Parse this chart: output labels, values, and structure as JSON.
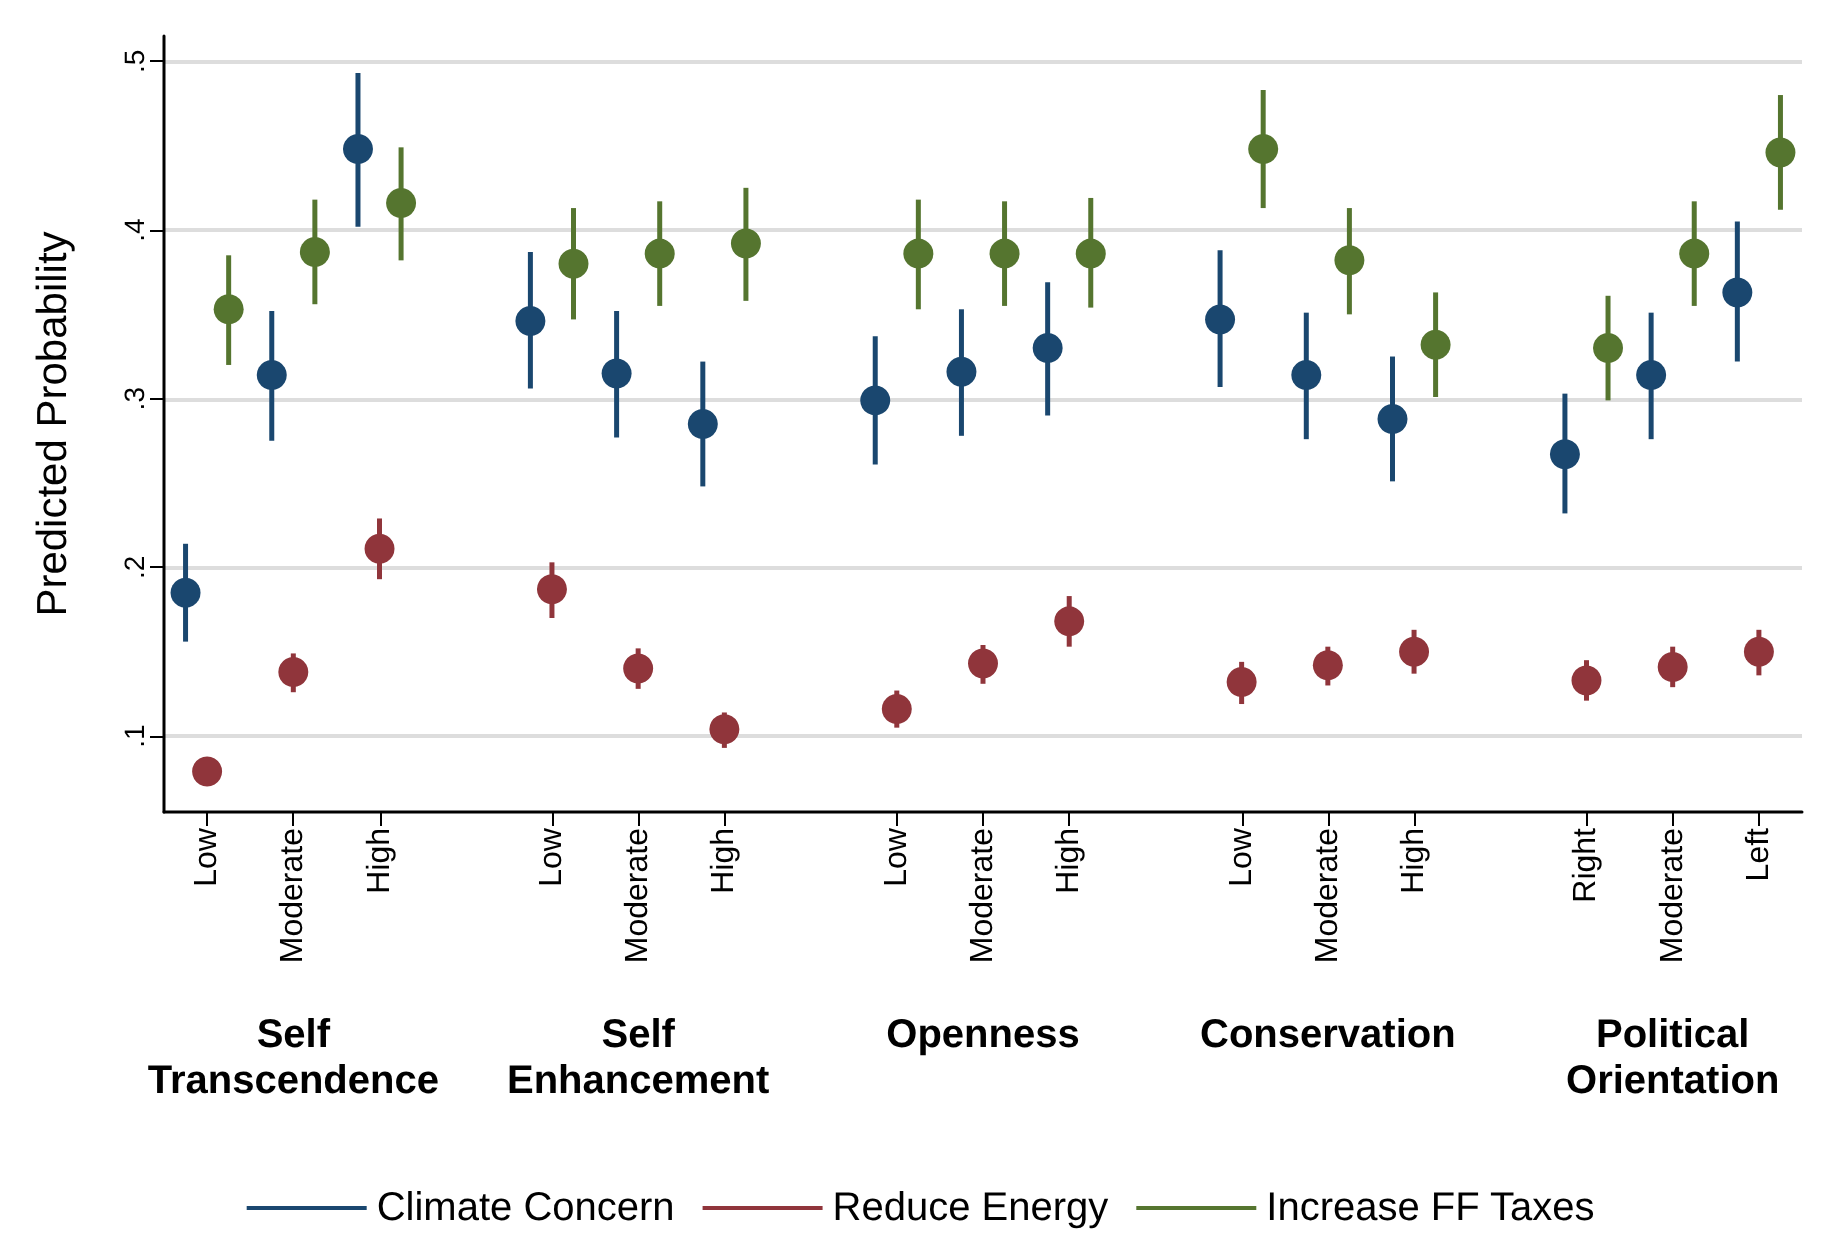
{
  "chart_data": {
    "type": "scatter",
    "ylabel": "Predicted Probability",
    "categories": [
      "Low",
      "Moderate",
      "High",
      null,
      "Low",
      "Moderate",
      "High",
      null,
      "Low",
      "Moderate",
      "High",
      null,
      "Low",
      "Moderate",
      "High",
      null,
      "Right",
      "Moderate",
      "Left"
    ],
    "ylim": [
      0.055,
      0.515
    ],
    "yticks": [
      {
        "value": 0.1,
        "label": ".1"
      },
      {
        "value": 0.2,
        "label": ".2"
      },
      {
        "value": 0.3,
        "label": ".3"
      },
      {
        "value": 0.4,
        "label": ".4"
      },
      {
        "value": 0.5,
        "label": ".5"
      }
    ],
    "annotations": [
      "Self\nTranscendence",
      "Self\nEnhancement",
      "Openness",
      "Conservation",
      "Political\nOrientation"
    ],
    "grid": "y",
    "legend": "bottom",
    "marker": "circle",
    "series": [
      {
        "name": "Climate Concern",
        "color": "#1a476f",
        "values": [
          0.185,
          0.314,
          0.448,
          null,
          0.346,
          0.315,
          0.285,
          null,
          0.299,
          0.316,
          0.33,
          null,
          0.347,
          0.314,
          0.288,
          null,
          0.267,
          0.314,
          0.363
        ],
        "errors": [
          [
            0.156,
            0.214
          ],
          [
            0.275,
            0.352
          ],
          [
            0.402,
            0.493
          ],
          null,
          [
            0.306,
            0.387
          ],
          [
            0.277,
            0.352
          ],
          [
            0.248,
            0.322
          ],
          null,
          [
            0.261,
            0.337
          ],
          [
            0.278,
            0.353
          ],
          [
            0.29,
            0.369
          ],
          null,
          [
            0.307,
            0.388
          ],
          [
            0.276,
            0.351
          ],
          [
            0.251,
            0.325
          ],
          null,
          [
            0.232,
            0.303
          ],
          [
            0.276,
            0.351
          ],
          [
            0.322,
            0.405
          ]
        ]
      },
      {
        "name": "Reduce Energy",
        "color": "#90353b",
        "values": [
          0.079,
          0.138,
          0.211,
          null,
          0.187,
          0.14,
          0.104,
          null,
          0.116,
          0.143,
          0.168,
          null,
          0.132,
          0.142,
          0.15,
          null,
          0.133,
          0.141,
          0.15
        ],
        "errors": [
          [
            0.072,
            0.085
          ],
          [
            0.126,
            0.149
          ],
          [
            0.193,
            0.229
          ],
          null,
          [
            0.17,
            0.203
          ],
          [
            0.128,
            0.152
          ],
          [
            0.093,
            0.114
          ],
          null,
          [
            0.105,
            0.127
          ],
          [
            0.131,
            0.154
          ],
          [
            0.153,
            0.183
          ],
          null,
          [
            0.119,
            0.144
          ],
          [
            0.13,
            0.153
          ],
          [
            0.137,
            0.163
          ],
          null,
          [
            0.121,
            0.145
          ],
          [
            0.129,
            0.153
          ],
          [
            0.136,
            0.163
          ]
        ]
      },
      {
        "name": "Increase FF Taxes",
        "color": "#55752f",
        "values": [
          0.353,
          0.387,
          0.416,
          null,
          0.38,
          0.386,
          0.392,
          null,
          0.386,
          0.386,
          0.386,
          null,
          0.448,
          0.382,
          0.332,
          null,
          0.33,
          0.386,
          0.446
        ],
        "errors": [
          [
            0.32,
            0.385
          ],
          [
            0.356,
            0.418
          ],
          [
            0.382,
            0.449
          ],
          null,
          [
            0.347,
            0.413
          ],
          [
            0.355,
            0.417
          ],
          [
            0.358,
            0.425
          ],
          null,
          [
            0.353,
            0.418
          ],
          [
            0.355,
            0.417
          ],
          [
            0.354,
            0.419
          ],
          null,
          [
            0.413,
            0.483
          ],
          [
            0.35,
            0.413
          ],
          [
            0.301,
            0.363
          ],
          null,
          [
            0.299,
            0.361
          ],
          [
            0.355,
            0.417
          ],
          [
            0.412,
            0.48
          ]
        ]
      }
    ]
  }
}
